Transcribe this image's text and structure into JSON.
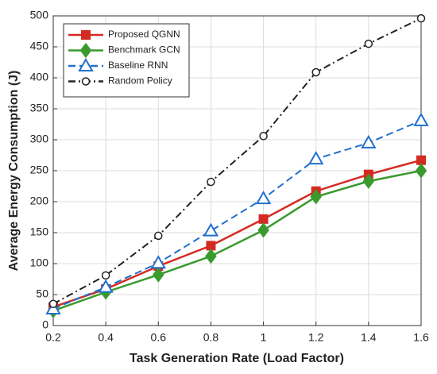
{
  "chart_data": {
    "type": "line",
    "xlabel": "Task Generation Rate (Load Factor)",
    "ylabel": "Average Energy Consumption (J)",
    "x": [
      0.2,
      0.4,
      0.6,
      0.8,
      1,
      1.2,
      1.4,
      1.6
    ],
    "series": [
      {
        "name": "Proposed QGNN",
        "color": "#d42a22",
        "marker": "square",
        "dash": "solid",
        "values": [
          30,
          59,
          96,
          129,
          172,
          217,
          244,
          267
        ]
      },
      {
        "name": "Benchmark GCN",
        "color": "#3a9a2e",
        "marker": "diamond",
        "dash": "solid",
        "values": [
          24,
          54,
          82,
          112,
          154,
          208,
          233,
          250
        ]
      },
      {
        "name": "Baseline RNN",
        "color": "#2070d0",
        "marker": "triangle",
        "dash": "dashed",
        "values": [
          27,
          62,
          101,
          153,
          205,
          269,
          295,
          331
        ]
      },
      {
        "name": "Random Policy",
        "color": "#222222",
        "marker": "circle",
        "dash": "dashdot",
        "values": [
          35,
          81,
          145,
          232,
          306,
          409,
          455,
          496
        ]
      }
    ],
    "xlim": [
      0.2,
      1.6
    ],
    "xticks": [
      0.2,
      0.4,
      0.6,
      0.8,
      1,
      1.2,
      1.4,
      1.6
    ],
    "ylim": [
      0,
      500
    ],
    "yticks": [
      0,
      50,
      100,
      150,
      200,
      250,
      300,
      350,
      400,
      450,
      500
    ],
    "grid": true,
    "legend": "upper left"
  }
}
